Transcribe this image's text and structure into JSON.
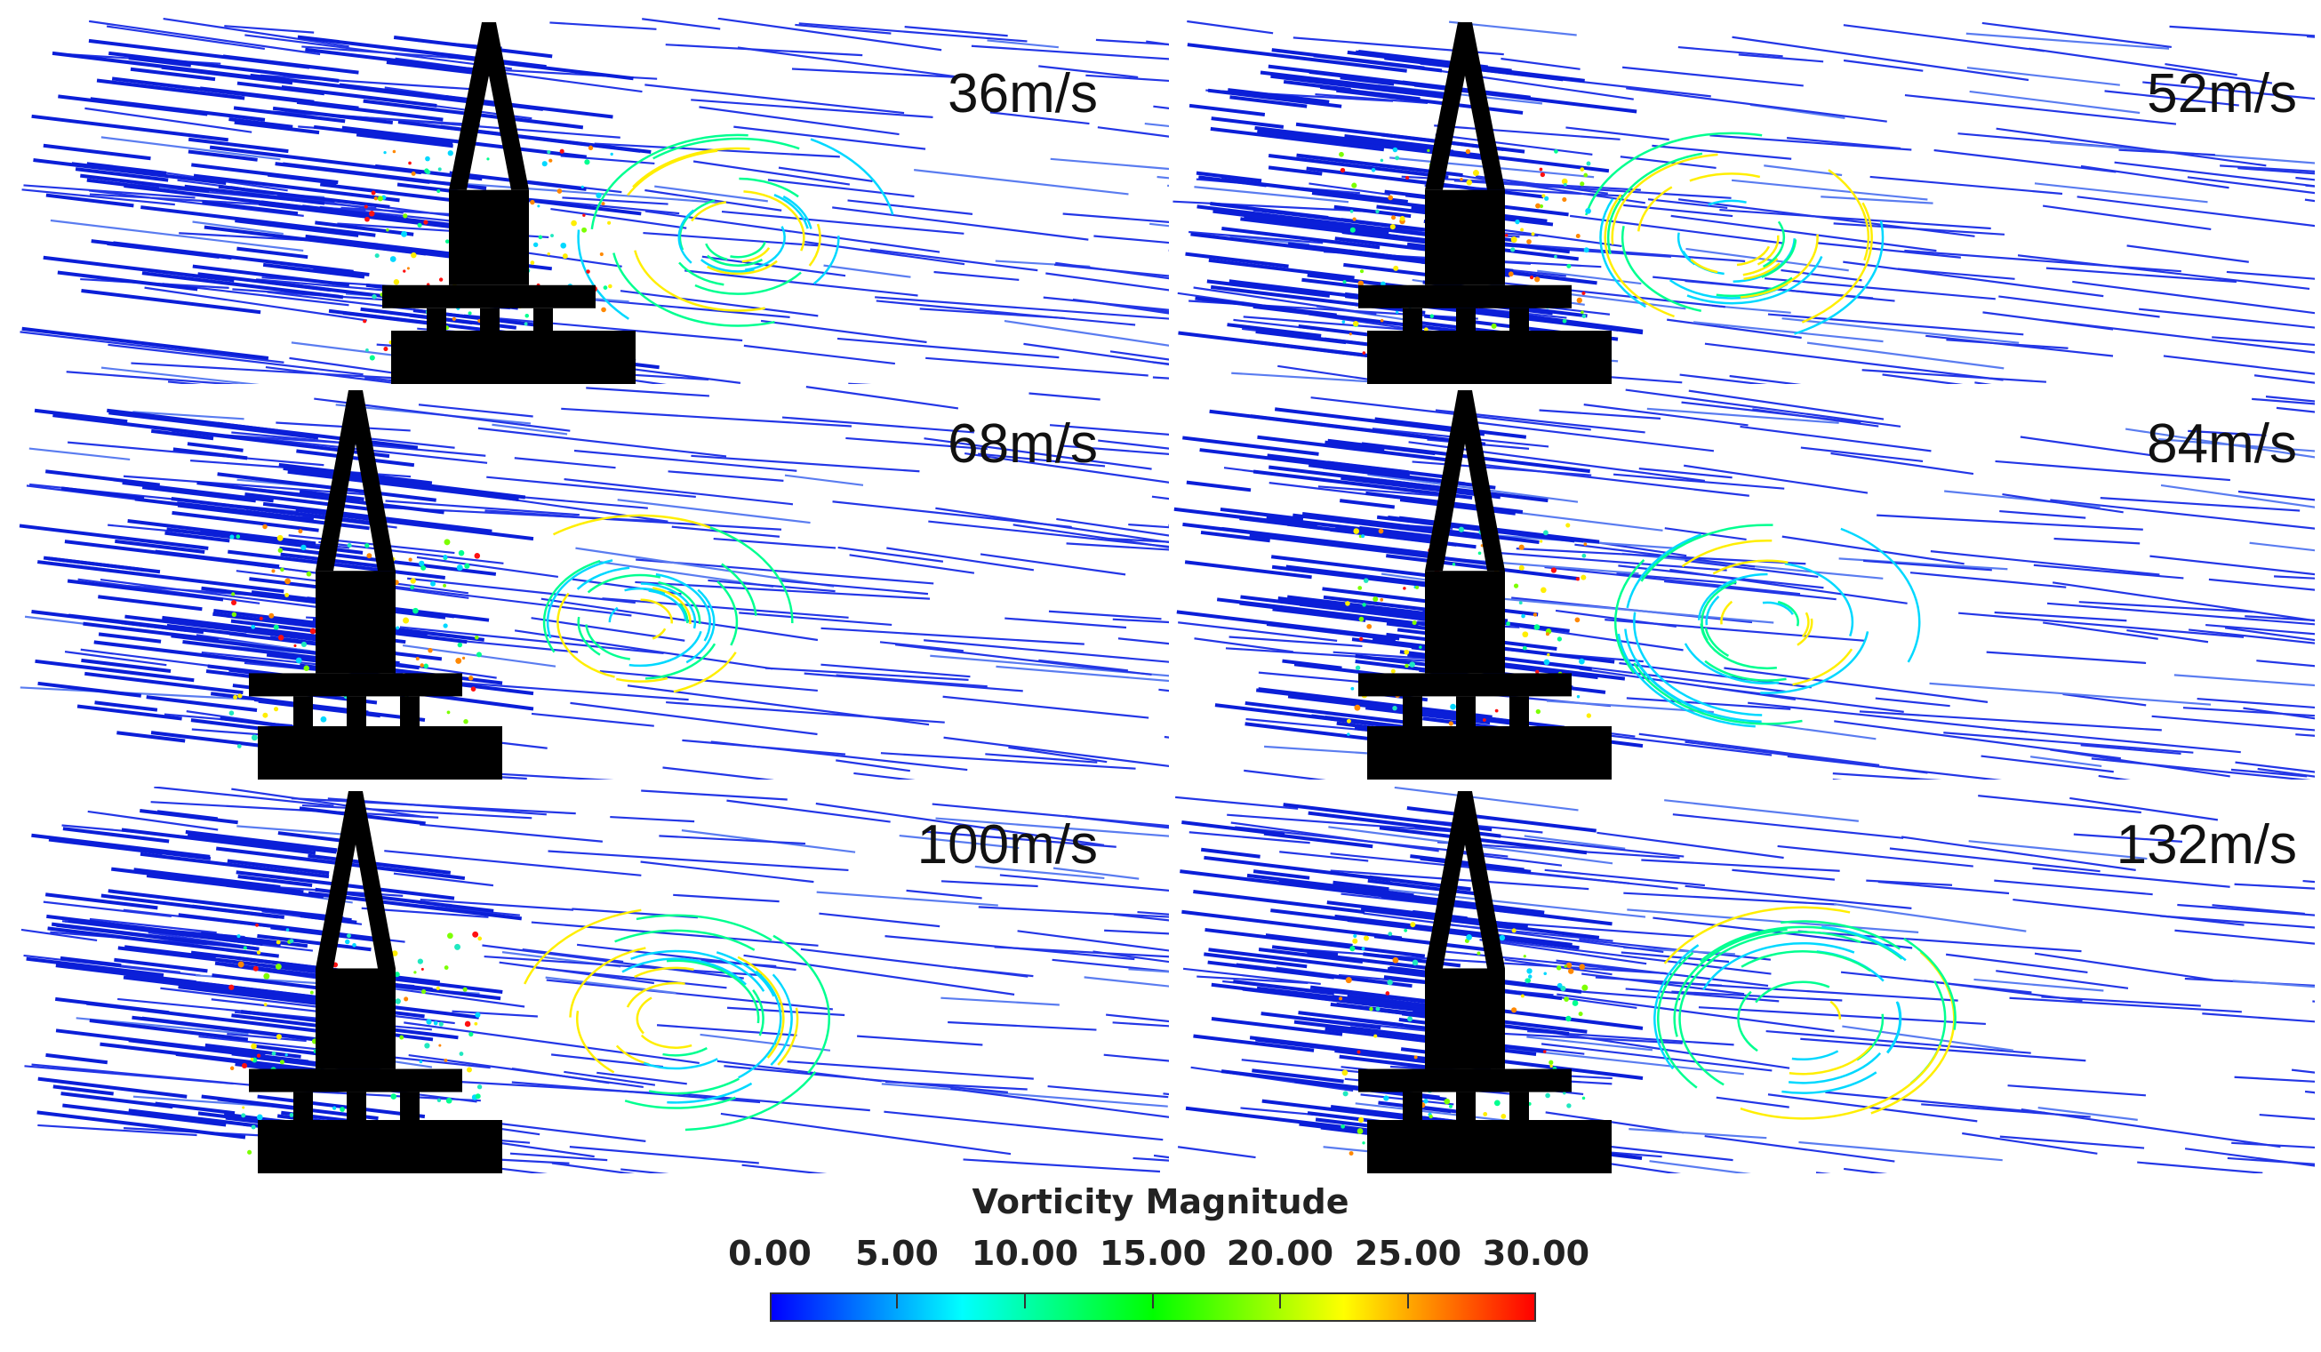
{
  "panels": [
    {
      "label": "36m/s",
      "speed": 36
    },
    {
      "label": "52m/s",
      "speed": 52
    },
    {
      "label": "68m/s",
      "speed": 68
    },
    {
      "label": "84m/s",
      "speed": 84
    },
    {
      "label": "100m/s",
      "speed": 100
    },
    {
      "label": "132m/s",
      "speed": 132
    }
  ],
  "legend": {
    "title": "Vorticity Magnitude",
    "ticks": [
      "0.00",
      "5.00",
      "10.00",
      "15.00",
      "20.00",
      "25.00",
      "30.00"
    ],
    "min": 0,
    "max": 30,
    "colors": [
      "#0000ff",
      "#00ffff",
      "#00ff00",
      "#ffff00",
      "#ff0000"
    ]
  },
  "colors": {
    "streamline_low": "#1a2be0",
    "structure": "#000000"
  }
}
